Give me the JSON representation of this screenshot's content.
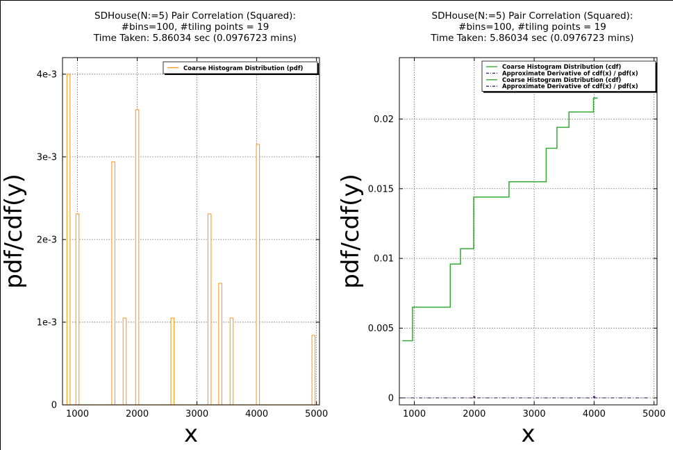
{
  "chart_data": [
    {
      "type": "bar",
      "title_lines": [
        "SDHouse(N:=5) Pair Correlation (Squared):",
        "#bins=100, #tiling points = 19",
        "Time Taken: 5.86034 sec (0.0976723 mins)"
      ],
      "xlabel": "x",
      "ylabel": "pdf/cdf(y)",
      "xlim": [
        750,
        5050
      ],
      "ylim": [
        0,
        0.0042
      ],
      "xticks": [
        1000,
        2000,
        3000,
        4000,
        5000
      ],
      "xtick_labels": [
        "1000",
        "2000",
        "3000",
        "4000",
        "5000"
      ],
      "yticks": [
        0,
        0.001,
        0.002,
        0.003,
        0.004
      ],
      "ytick_labels": [
        "0",
        "1e-3",
        "2e-3",
        "3e-3",
        "4e-3"
      ],
      "grid": true,
      "legend_position": "top-right",
      "color": "#ff9a1e",
      "series": [
        {
          "name": "Coarse Histogram Distribution (pdf)",
          "x": [
            850,
            1000,
            1600,
            1790,
            2000,
            2590,
            3210,
            3390,
            3580,
            4020,
            4950
          ],
          "values": [
            0.004,
            0.00231,
            0.00294,
            0.00105,
            0.00357,
            0.00105,
            0.00231,
            0.00147,
            0.00105,
            0.00315,
            0.00084
          ]
        }
      ]
    },
    {
      "type": "line",
      "title_lines": [
        "SDHouse(N:=5) Pair Correlation (Squared):",
        "#bins=100, #tiling points = 19",
        "Time Taken: 5.86034 sec (0.0976723 mins)"
      ],
      "xlabel": "x",
      "ylabel": "pdf/cdf(y)",
      "xlim": [
        750,
        5050
      ],
      "ylim": [
        -0.0005,
        0.0244
      ],
      "xticks": [
        1000,
        2000,
        3000,
        4000,
        5000
      ],
      "xtick_labels": [
        "1000",
        "2000",
        "3000",
        "4000",
        "5000"
      ],
      "yticks": [
        0,
        0.005,
        0.01,
        0.015,
        0.02
      ],
      "ytick_labels": [
        "0",
        "0.005",
        "0.01",
        "0.015",
        "0.02"
      ],
      "grid": true,
      "legend_position": "top-right",
      "legend": [
        {
          "label": "Coarse Histogram Distribution (cdf)",
          "style": "solid",
          "color": "#33aa33"
        },
        {
          "label": "Approximate Derivative of cdf(x) / pdf(x)",
          "style": "dashdot",
          "color": "#442266"
        },
        {
          "label": "Coarse Histogram Distribution (cdf)",
          "style": "solid",
          "color": "#33aa33"
        },
        {
          "label": "Approximate Derivative of cdf(x) / pdf(x)",
          "style": "dashdot",
          "color": "#442266"
        }
      ],
      "series": [
        {
          "name": "Coarse Histogram Distribution (cdf)",
          "color": "#33aa33",
          "step_x": [
            800,
            970,
            1600,
            1770,
            1990,
            2580,
            3200,
            3380,
            3580,
            3990,
            4060
          ],
          "step_y": [
            0.0041,
            0.0065,
            0.0096,
            0.0107,
            0.0144,
            0.0155,
            0.0179,
            0.0194,
            0.0205,
            0.0215,
            0.0215
          ]
        },
        {
          "name": "Approximate Derivative of cdf(x) / pdf(x)",
          "color": "#442266",
          "x": [
            800,
            4900
          ],
          "values": [
            0,
            0
          ]
        }
      ]
    }
  ]
}
